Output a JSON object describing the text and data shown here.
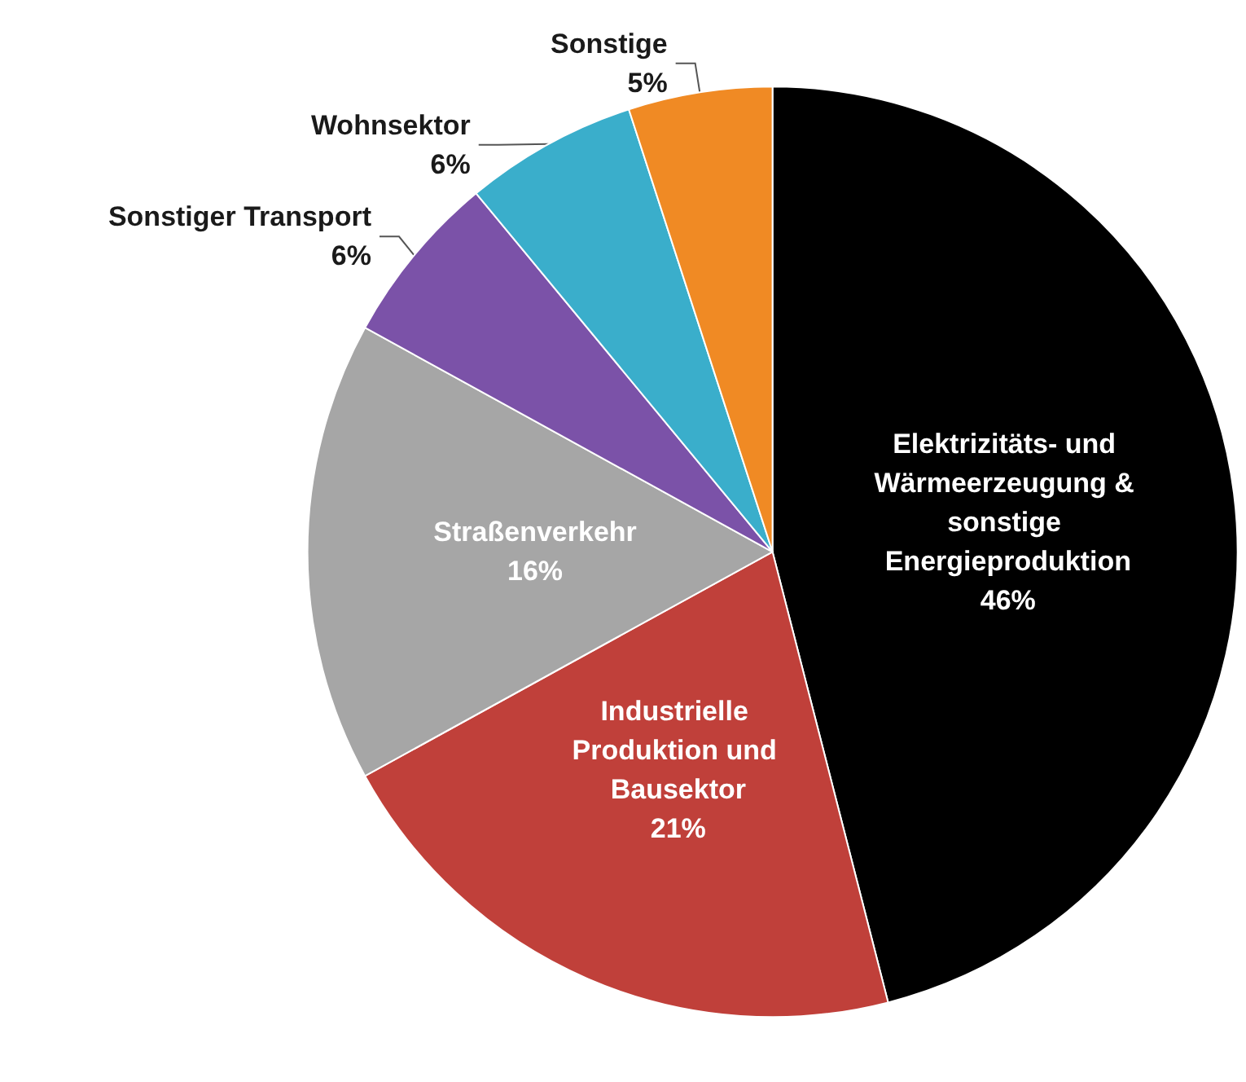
{
  "chart_data": {
    "type": "pie",
    "categories": [
      "Elektrizitäts- und Wärmeerzeugung & sonstige Energieproduktion",
      "Industrielle Produktion und Bausektor",
      "Straßenverkehr",
      "Sonstiger Transport",
      "Wohnsektor",
      "Sonstige"
    ],
    "values": [
      46,
      21,
      16,
      6,
      6,
      5
    ],
    "value_labels": [
      "46%",
      "21%",
      "16%",
      "6%",
      "6%",
      "5%"
    ],
    "colors": [
      "#000000",
      "#c0403a",
      "#a6a6a6",
      "#7b52a8",
      "#3aaecb",
      "#f08a24"
    ]
  }
}
